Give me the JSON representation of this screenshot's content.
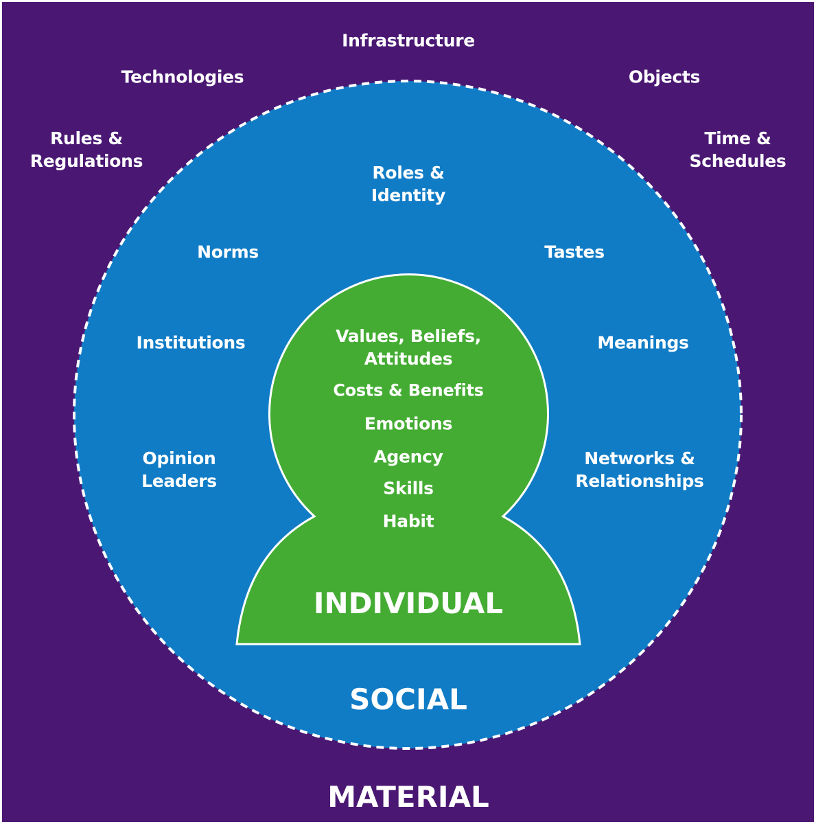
{
  "colors": {
    "material": "#4a1873",
    "social": "#117cc6",
    "individual": "#44ac33",
    "text": "#ffffff"
  },
  "material": {
    "title": "MATERIAL",
    "items": {
      "infrastructure": "Infrastructure",
      "technologies": "Technologies",
      "objects": "Objects",
      "rules_regulations": "Rules &\nRegulations",
      "time_schedules": "Time &\nSchedules"
    }
  },
  "social": {
    "title": "SOCIAL",
    "items": {
      "roles_identity": "Roles &\nIdentity",
      "norms": "Norms",
      "tastes": "Tastes",
      "institutions": "Institutions",
      "meanings": "Meanings",
      "opinion_leaders": "Opinion\nLeaders",
      "networks_relationships": "Networks &\nRelationships"
    }
  },
  "individual": {
    "title": "INDIVIDUAL",
    "items": {
      "values_beliefs": "Values, Beliefs,\nAttitudes",
      "costs_benefits": "Costs & Benefits",
      "emotions": "Emotions",
      "agency": "Agency",
      "skills": "Skills",
      "habit": "Habit"
    }
  }
}
